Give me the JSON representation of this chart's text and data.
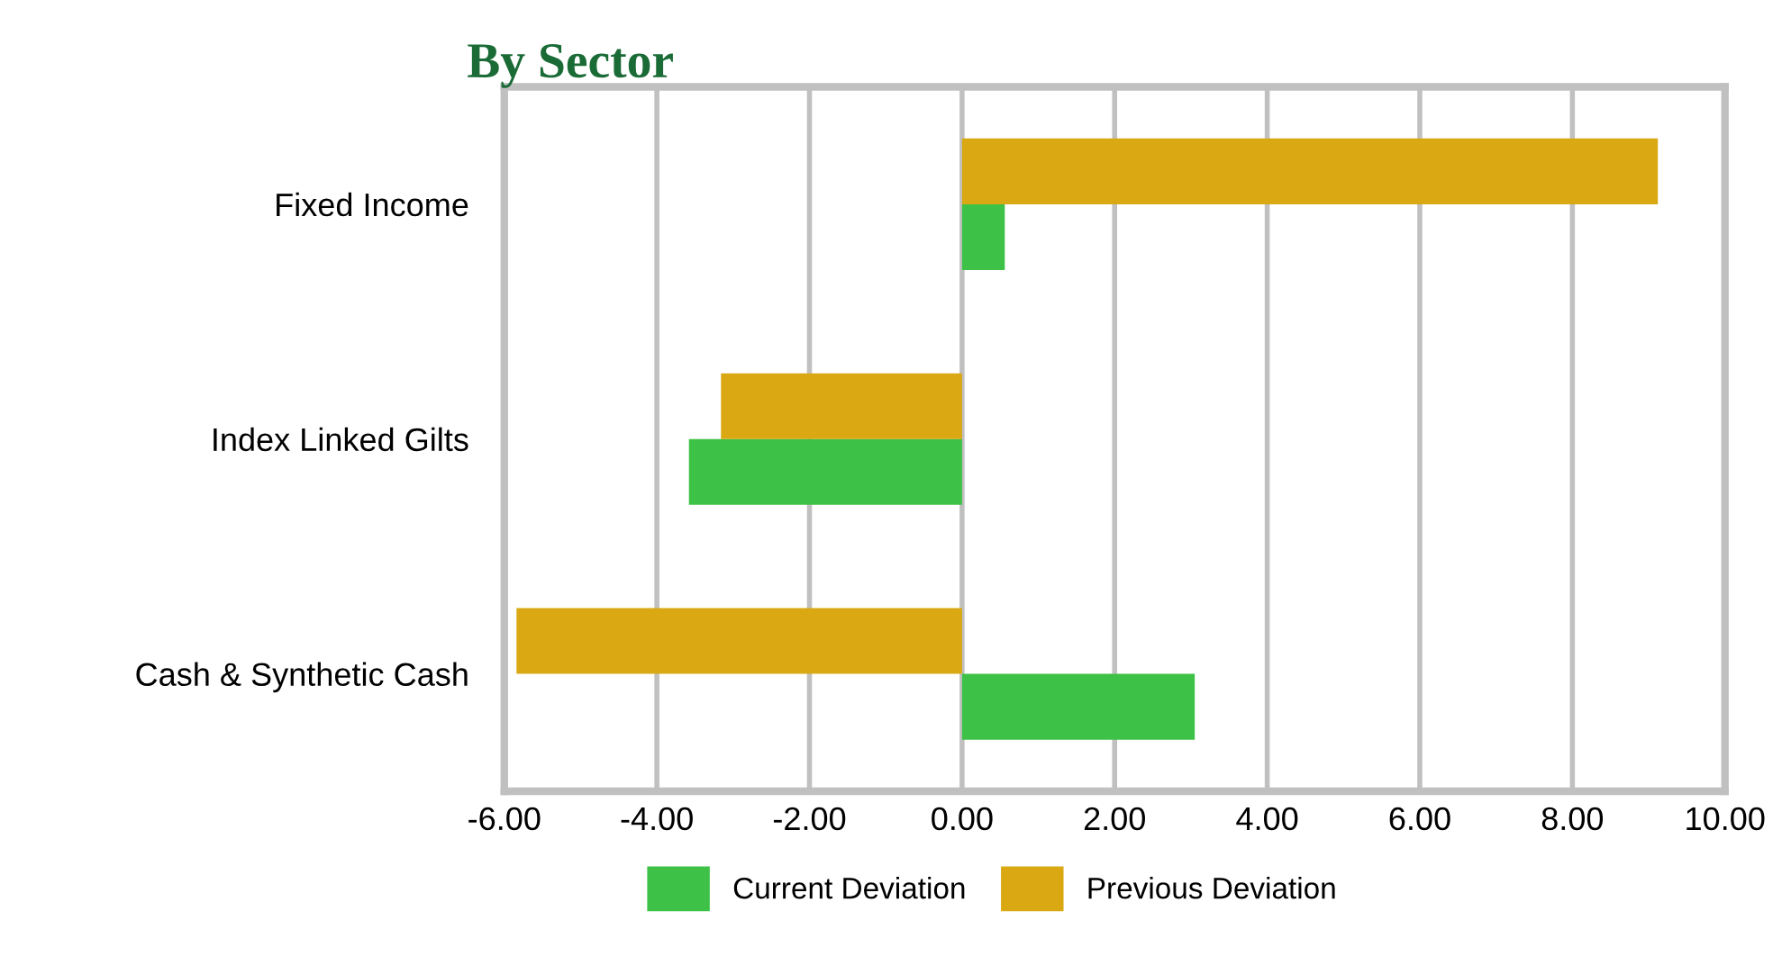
{
  "chart_data": {
    "type": "bar",
    "orientation": "horizontal",
    "title": "By Sector",
    "categories": [
      "Fixed Income",
      "Index Linked Gilts",
      "Cash & Synthetic Cash"
    ],
    "series": [
      {
        "name": "Current Deviation",
        "color": "#3dc146",
        "values": [
          0.56,
          -3.58,
          3.05
        ]
      },
      {
        "name": "Previous Deviation",
        "color": "#d9a812",
        "values": [
          9.12,
          -3.16,
          -5.84
        ]
      }
    ],
    "xlim": [
      -6,
      10
    ],
    "xticks": [
      {
        "value": -6,
        "label": "-6.00"
      },
      {
        "value": -4,
        "label": "-4.00"
      },
      {
        "value": -2,
        "label": "-2.00"
      },
      {
        "value": 0,
        "label": "0.00"
      },
      {
        "value": 2,
        "label": "2.00"
      },
      {
        "value": 4,
        "label": "4.00"
      },
      {
        "value": 6,
        "label": "6.00"
      },
      {
        "value": 8,
        "label": "8.00"
      },
      {
        "value": 10,
        "label": "10.00"
      }
    ],
    "grid": "x",
    "legend": "bottom"
  }
}
